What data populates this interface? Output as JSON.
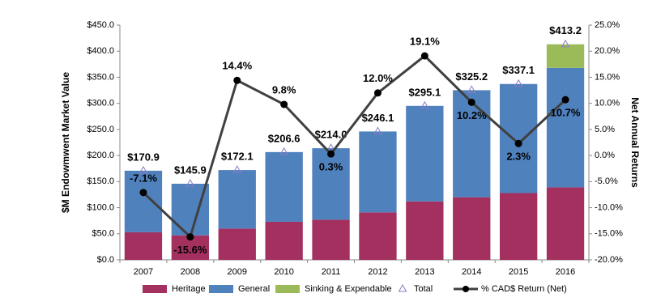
{
  "chart_data": {
    "type": "bar",
    "stacked": true,
    "y_axis_label": "$M Endowmwent Market Value",
    "y2_axis_label": "Net Annual Returns",
    "categories": [
      "2007",
      "2008",
      "2009",
      "2010",
      "2011",
      "2012",
      "2013",
      "2014",
      "2015",
      "2016"
    ],
    "series": [
      {
        "name": "Heritage",
        "type": "bar",
        "color": "#a3305f",
        "values": [
          53,
          47,
          60,
          73,
          77,
          91,
          112,
          120,
          128,
          139
        ]
      },
      {
        "name": "General",
        "type": "bar",
        "color": "#4f81bd",
        "values": [
          117.9,
          98.9,
          112.1,
          133.6,
          137.0,
          155.1,
          183.1,
          205.2,
          209.1,
          229
        ]
      },
      {
        "name": "Sinking & Expendable",
        "type": "bar",
        "color": "#9bbb59",
        "values": [
          null,
          null,
          null,
          null,
          null,
          null,
          null,
          null,
          null,
          45.2
        ]
      },
      {
        "name": "Total",
        "type": "marker",
        "color": "#8e7cc3",
        "values": [
          170.9,
          145.9,
          172.1,
          206.6,
          214.0,
          246.1,
          295.1,
          325.2,
          337.1,
          413.2
        ],
        "value_labels": [
          "$170.9",
          "$145.9",
          "$172.1",
          "$206.6",
          "$214.0",
          "$246.1",
          "$295.1",
          "$325.2",
          "$337.1",
          "$413.2"
        ]
      },
      {
        "name": "% CAD$ Return (Net)",
        "type": "line",
        "axis": "y2",
        "color": "#404040",
        "values": [
          -7.1,
          -15.6,
          14.4,
          9.8,
          0.3,
          12.0,
          19.1,
          10.2,
          2.3,
          10.7
        ],
        "value_labels": [
          "-7.1%",
          "-15.6%",
          "14.4%",
          "9.8%",
          "0.3%",
          "12.0%",
          "19.1%",
          "10.2%",
          "2.3%",
          "10.7%"
        ]
      }
    ],
    "ylim": [
      0,
      450
    ],
    "yticks": [
      {
        "value": 0,
        "label": "$0.0"
      },
      {
        "value": 50,
        "label": "$50.0"
      },
      {
        "value": 100,
        "label": "$100.0"
      },
      {
        "value": 150,
        "label": "$150.0"
      },
      {
        "value": 200,
        "label": "$200.0"
      },
      {
        "value": 250,
        "label": "$250.0"
      },
      {
        "value": 300,
        "label": "$300.0"
      },
      {
        "value": 350,
        "label": "$350.0"
      },
      {
        "value": 400,
        "label": "$400.0"
      },
      {
        "value": 450,
        "label": "$450.0"
      }
    ],
    "y2lim": [
      -20,
      25
    ],
    "y2ticks": [
      {
        "value": -20,
        "label": "-20.0%"
      },
      {
        "value": -15,
        "label": "-15.0%"
      },
      {
        "value": -10,
        "label": "-10.0%"
      },
      {
        "value": -5,
        "label": "-5.0%"
      },
      {
        "value": 0,
        "label": "0.0%"
      },
      {
        "value": 5,
        "label": "5.0%"
      },
      {
        "value": 10,
        "label": "10.0%"
      },
      {
        "value": 15,
        "label": "15.0%"
      },
      {
        "value": 20,
        "label": "20.0%"
      },
      {
        "value": 25,
        "label": "25.0%"
      }
    ]
  }
}
